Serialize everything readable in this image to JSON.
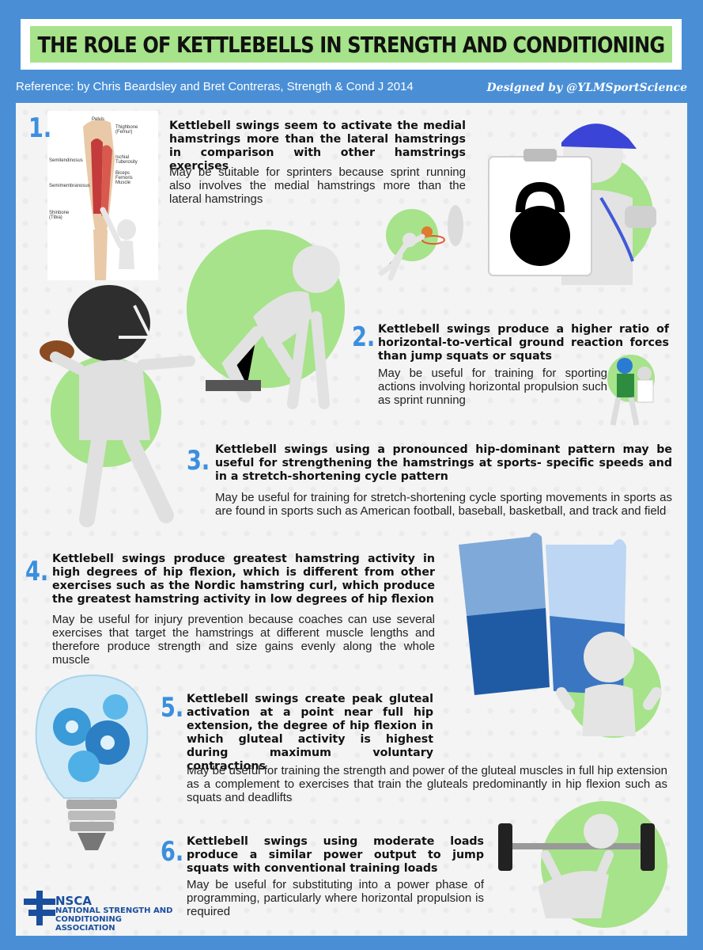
{
  "title": "THE ROLE OF KETTLEBELLS IN STRENGTH AND CONDITIONING",
  "reference": "Reference: by Chris Beardsley and Bret Contreras, Strength & Cond J 2014",
  "designed_by": "Designed by @YLMSportScience",
  "anatomy_labels": {
    "pelvis": "Pelvis",
    "thighbone": "Thighbone (Femur)",
    "ischial": "Ischial Tuberosity",
    "biceps": "Biceps Femoris Muscle",
    "semitendinosus": "Semitendinosus",
    "semimembranosus": "Semimembranosus",
    "shinbone": "Shinbone (Tibia)"
  },
  "sections": [
    {
      "number": "1.",
      "heading": "Kettlebell swings seem to activate the medial hamstrings more than the lateral hamstrings in comparison with other hamstrings exercises",
      "body": "May be suitable for sprinters because sprint running also involves the medial hamstrings more than the lateral hamstrings"
    },
    {
      "number": "2.",
      "heading": "Kettlebell swings produce a higher ratio of horizontal-to-vertical ground reaction forces than jump squats or squats",
      "body": "May be useful for training for sporting actions involving horizontal propulsion such as sprint running"
    },
    {
      "number": "3.",
      "heading": "Kettlebell swings using a pronounced hip-dominant pattern may be useful for strengthening the hamstrings at sports- specific speeds and in a stretch-shortening cycle pattern",
      "body": "May be useful for training for stretch-shortening cycle sporting movements in sports as are found in sports such as American football, baseball, basketball, and track and field"
    },
    {
      "number": "4.",
      "heading": "Kettlebell swings produce greatest hamstring activity in high degrees of hip flexion, which is different from other exercises such as the Nordic hamstring curl, which produce the greatest hamstring activity in low degrees of hip flexion",
      "body": "May be useful for injury prevention because coaches can use several exercises that target the hamstrings at different muscle lengths and therefore produce strength and size gains evenly along the whole muscle"
    },
    {
      "number": "5.",
      "heading": "Kettlebell swings create peak gluteal activation at a point near full hip extension, the degree of hip flexion in which gluteal activity is highest during maximum voluntary contractions",
      "body": "May be useful for training the strength and power of the gluteal muscles in full hip extension as a complement to exercises that train the gluteals predominantly in hip flexion such as squats and deadlifts"
    },
    {
      "number": "6.",
      "heading": "Kettlebell swings using moderate loads produce a similar power output to jump squats with conventional training loads",
      "body": "May be useful for substituting into a power phase of programming, particularly where horizontal propulsion is required"
    }
  ],
  "logo": {
    "acronym": "NSCA",
    "line1": "NATIONAL STRENGTH AND",
    "line2": "CONDITIONING ASSOCIATION"
  },
  "colors": {
    "accent": "#4a8fd6",
    "green": "#a6e38a",
    "number": "#3b8fde"
  }
}
